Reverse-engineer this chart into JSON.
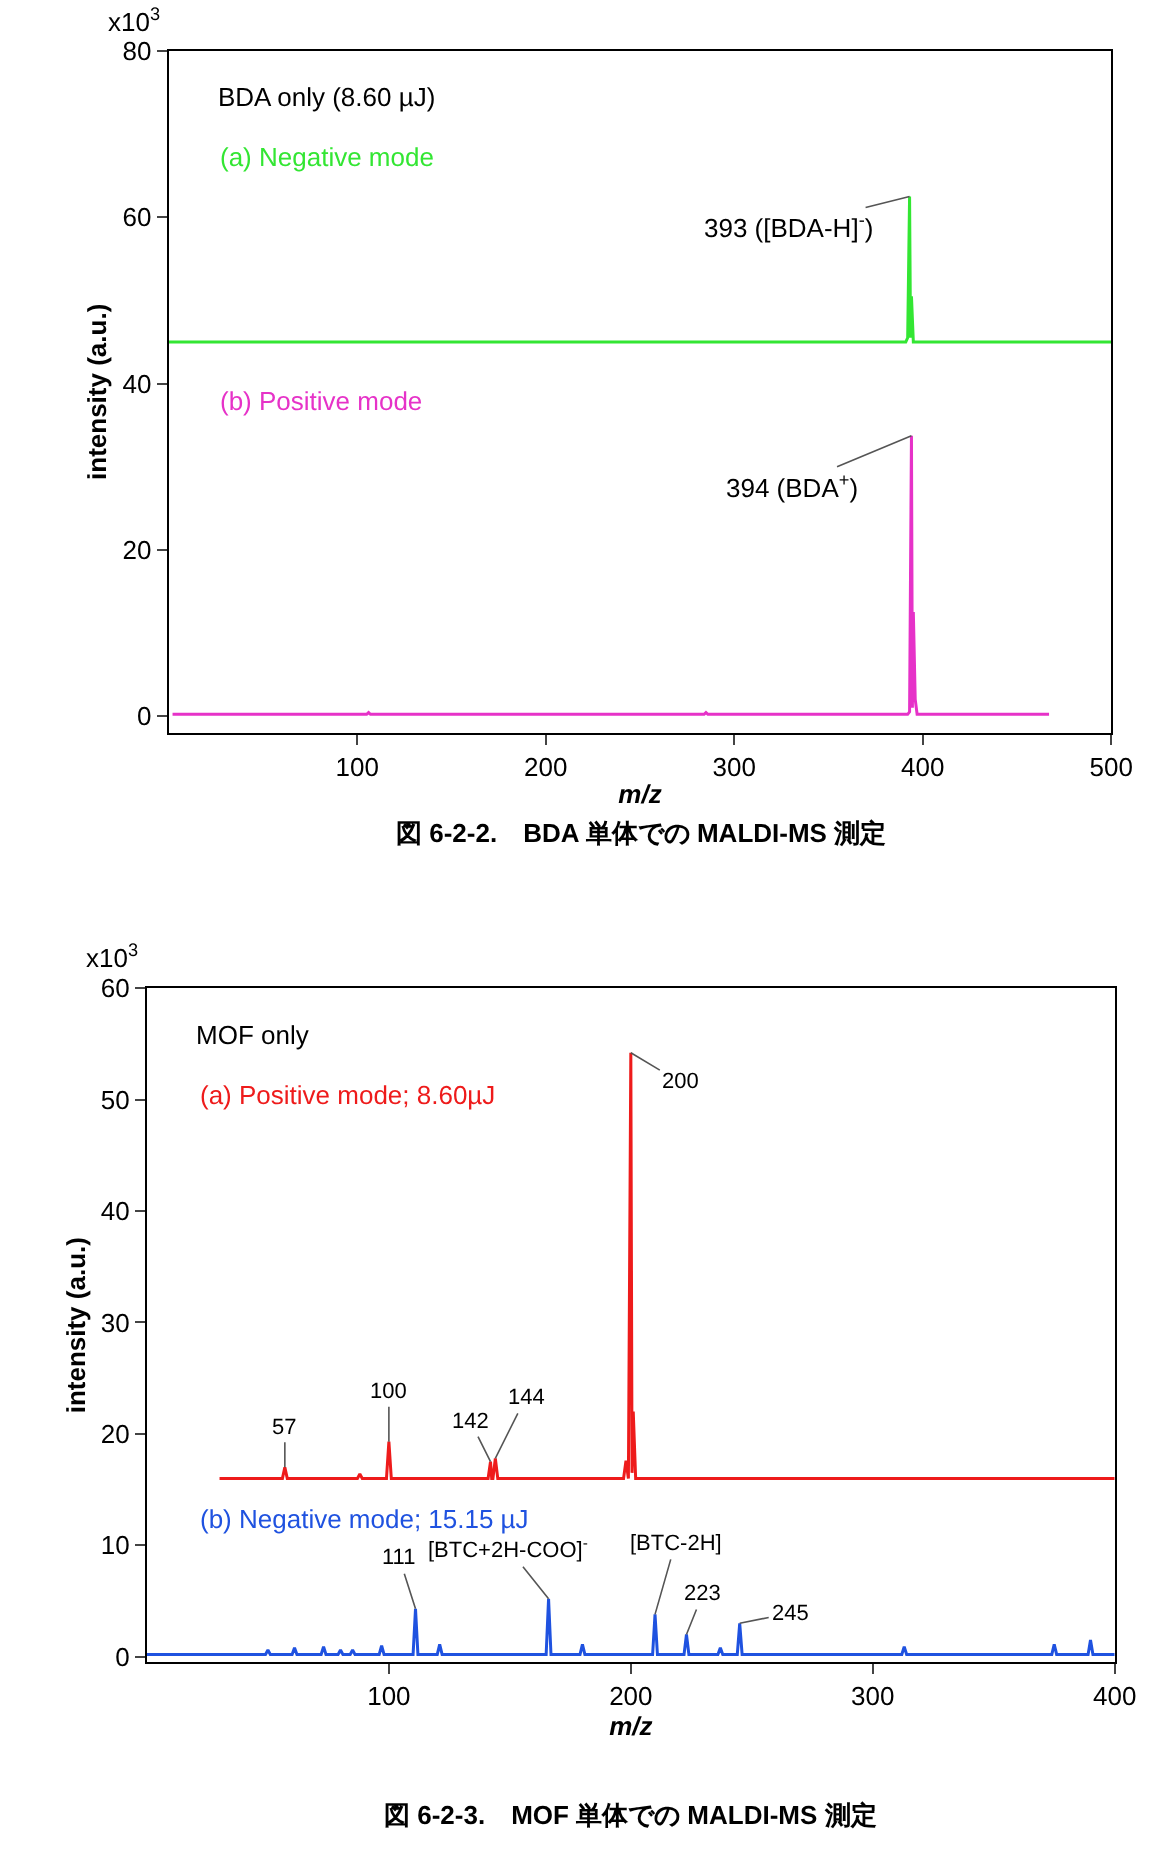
{
  "chart_data": [
    {
      "type": "line",
      "title": "図 6-2-2.　BDA 単体での MALDI-MS 測定",
      "subtitle": "BDA only (8.60 µJ)",
      "xlabel": "m/z",
      "ylabel": "intensity (a.u.)",
      "xlim": [
        0,
        500
      ],
      "xticks": [
        100,
        200,
        300,
        400,
        500
      ],
      "ylim": [
        -2,
        80
      ],
      "yticks": [
        0,
        20,
        40,
        60,
        80
      ],
      "series": [
        {
          "name": "(a) Negative mode",
          "color": "#33e633",
          "x": [
            0,
            391,
            392,
            393,
            393.5,
            394,
            395,
            500
          ],
          "values": [
            45,
            45,
            45.5,
            62.5,
            45.5,
            50.5,
            45,
            45
          ]
        },
        {
          "name": "(b) Positive mode",
          "color": "#e632c8",
          "x": [
            2,
            105,
            106,
            107,
            284,
            285,
            286,
            392,
            393,
            394,
            394.5,
            395,
            396,
            397,
            467
          ],
          "values": [
            0.2,
            0.2,
            0.4,
            0.2,
            0.2,
            0.4,
            0.2,
            0.2,
            0.5,
            33.7,
            1,
            12.5,
            2,
            0.2,
            0.2
          ]
        }
      ],
      "annotations": [
        "x10$^{3}$",
        {
          "text": "393 ([BDA-H]$^{-}$)",
          "x": 393,
          "y": 62.5
        },
        {
          "text": "394 (BDA$^{+}$)",
          "x": 394,
          "y": 33.7
        }
      ]
    },
    {
      "type": "line",
      "title": "図 6-2-3.　MOF 単体での MALDI-MS 測定",
      "subtitle": "MOF only",
      "xlabel": "m/z",
      "ylabel": "intensity (a.u.)",
      "xlim": [
        0,
        400
      ],
      "xticks": [
        100,
        200,
        300,
        400
      ],
      "ylim": [
        -0.5,
        60
      ],
      "yticks": [
        0,
        10,
        20,
        30,
        40,
        50,
        60
      ],
      "series": [
        {
          "name": "(a) Positive mode; 8.60µJ",
          "color": "#ee1b1b",
          "x": [
            30,
            56,
            57,
            58,
            87,
            88,
            89,
            99,
            100,
            101,
            141,
            142,
            142.5,
            143,
            144,
            145,
            197,
            198,
            199,
            200,
            200.5,
            201,
            202,
            400
          ],
          "values": [
            16,
            16,
            17,
            16,
            16,
            16.4,
            16,
            16,
            19.3,
            16,
            16,
            17.5,
            16,
            16,
            17.8,
            16,
            16,
            17.6,
            16,
            54.2,
            16.5,
            22,
            16,
            16
          ]
        },
        {
          "name": "(b) Negative mode; 15.15 µJ",
          "color": "#1f52e0",
          "x": [
            0,
            49,
            50,
            51,
            60,
            61,
            62,
            72,
            73,
            74,
            79,
            80,
            81,
            84,
            85,
            86,
            96,
            97,
            98,
            110,
            111,
            112,
            120,
            121,
            122,
            165,
            166,
            167,
            179,
            180,
            181,
            209,
            210,
            211,
            222,
            223,
            224,
            236,
            237,
            238,
            244,
            245,
            246,
            312,
            313,
            314,
            374,
            375,
            376,
            389,
            390,
            391,
            400
          ],
          "values": [
            0.2,
            0.2,
            0.6,
            0.2,
            0.2,
            0.8,
            0.2,
            0.2,
            0.9,
            0.2,
            0.2,
            0.6,
            0.2,
            0.2,
            0.6,
            0.2,
            0.2,
            1,
            0.2,
            0.2,
            4.3,
            0.2,
            0.2,
            1.1,
            0.2,
            0.2,
            5.2,
            0.2,
            0.2,
            1.1,
            0.2,
            0.2,
            3.8,
            0.2,
            0.2,
            2,
            0.2,
            0.2,
            0.8,
            0.2,
            0.2,
            3,
            0.2,
            0.2,
            0.9,
            0.2,
            0.2,
            1.1,
            0.2,
            0.2,
            1.5,
            0.2,
            0.2
          ]
        }
      ],
      "annotations": [
        "x10$^{3}$",
        {
          "text": "57",
          "x": 57,
          "y": 17
        },
        {
          "text": "100",
          "x": 100,
          "y": 19.3
        },
        {
          "text": "142",
          "x": 142,
          "y": 17.5
        },
        {
          "text": "144",
          "x": 144,
          "y": 17.8
        },
        {
          "text": "200",
          "x": 200,
          "y": 54.2
        },
        {
          "text": "111",
          "x": 111,
          "y": 4.3
        },
        {
          "text": "[BTC+2H-COO]$^{-}$",
          "x": 166,
          "y": 5.2
        },
        {
          "text": "[BTC-2H]",
          "x": 210,
          "y": 3.8
        },
        {
          "text": "223",
          "x": 223,
          "y": 2
        },
        {
          "text": "245",
          "x": 245,
          "y": 3
        }
      ]
    }
  ]
}
